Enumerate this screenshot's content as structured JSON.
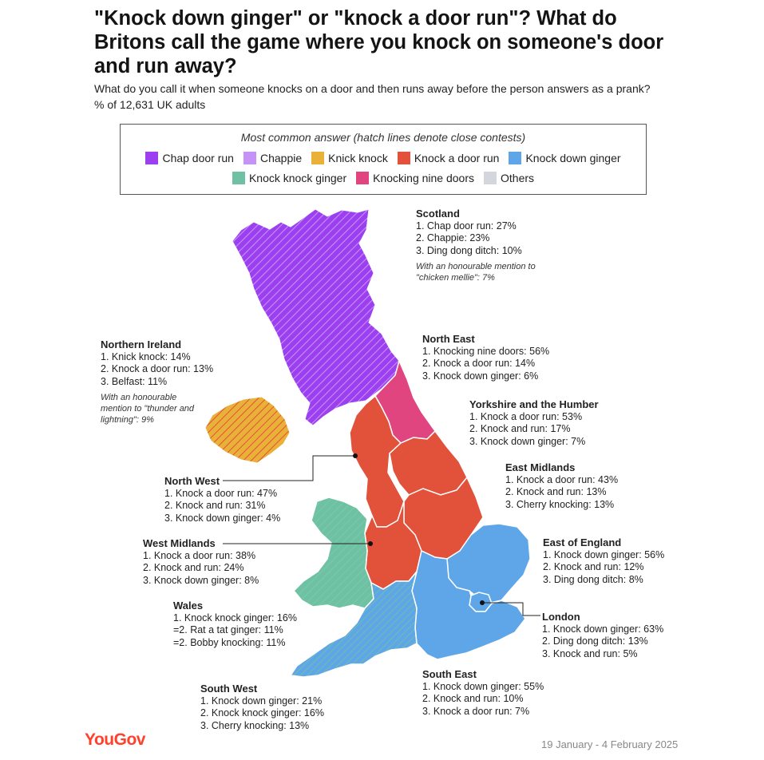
{
  "title": "\"Knock down ginger\" or \"knock a door run\"? What do Britons call the game where you knock on someone's door and run away?",
  "subtitle": "What do you call it when someone knocks on a door and then runs away before the person answers as a prank? % of 12,631 UK adults",
  "legend": {
    "title": "Most common answer (hatch lines denote close contests)",
    "items": [
      {
        "label": "Chap door run",
        "color": "#9b3ff0"
      },
      {
        "label": "Chappie",
        "color": "#c592f7"
      },
      {
        "label": "Knick knock",
        "color": "#eab139"
      },
      {
        "label": "Knock a door run",
        "color": "#e2513a"
      },
      {
        "label": "Knock down ginger",
        "color": "#5ea6e8"
      },
      {
        "label": "Knock knock ginger",
        "color": "#6ec2a3"
      },
      {
        "label": "Knocking nine doors",
        "color": "#e0457f"
      },
      {
        "label": "Others",
        "color": "#d3d6dc"
      }
    ]
  },
  "regions": {
    "scotland": {
      "name": "Scotland",
      "lines": [
        "1. Chap door run: 27%",
        "2. Chappie: 23%",
        "3. Ding dong ditch: 10%"
      ],
      "mention": "With an honourable mention to \"chicken mellie\": 7%"
    },
    "northern_ireland": {
      "name": "Northern Ireland",
      "lines": [
        "1. Knick knock: 14%",
        "2. Knock a door run: 13%",
        "3. Belfast: 11%"
      ],
      "mention": "With an honourable mention to \"thunder and lightning\": 9%"
    },
    "north_east": {
      "name": "North East",
      "lines": [
        "1. Knocking nine doors: 56%",
        "2. Knock a door run: 14%",
        "3. Knock down ginger: 6%"
      ]
    },
    "yorkshire": {
      "name": "Yorkshire and the Humber",
      "lines": [
        "1. Knock a door run: 53%",
        "2. Knock and run: 17%",
        "3. Knock down ginger: 7%"
      ]
    },
    "east_midlands": {
      "name": "East Midlands",
      "lines": [
        "1. Knock a door run: 43%",
        "2. Knock and run: 13%",
        "3. Cherry knocking: 13%"
      ]
    },
    "north_west": {
      "name": "North West",
      "lines": [
        "1. Knock a door run: 47%",
        "2. Knock and run: 31%",
        "3. Knock down ginger: 4%"
      ]
    },
    "east_of_england": {
      "name": "East of England",
      "lines": [
        "1. Knock down ginger: 56%",
        "2. Knock and run: 12%",
        "3. Ding dong ditch: 8%"
      ]
    },
    "west_midlands": {
      "name": "West Midlands",
      "lines": [
        "1. Knock a door run: 38%",
        "2. Knock and run: 24%",
        "3. Knock down ginger: 8%"
      ]
    },
    "london": {
      "name": "London",
      "lines": [
        "1. Knock down ginger: 63%",
        "2. Ding dong ditch: 13%",
        "3. Knock and run: 5%"
      ]
    },
    "wales": {
      "name": "Wales",
      "lines": [
        "1. Knock knock ginger: 16%",
        "=2. Rat a tat ginger: 11%",
        "=2. Bobby knocking: 11%"
      ]
    },
    "south_east": {
      "name": "South East",
      "lines": [
        "1. Knock down ginger: 55%",
        "2. Knock and run: 10%",
        "3. Knock a door run: 7%"
      ]
    },
    "south_west": {
      "name": "South West",
      "lines": [
        "1. Knock down ginger: 21%",
        "2. Knock knock ginger: 16%",
        "3. Cherry knocking: 13%"
      ]
    }
  },
  "footer": {
    "brand": "YouGov",
    "dates": "19 January - 4 February 2025"
  }
}
